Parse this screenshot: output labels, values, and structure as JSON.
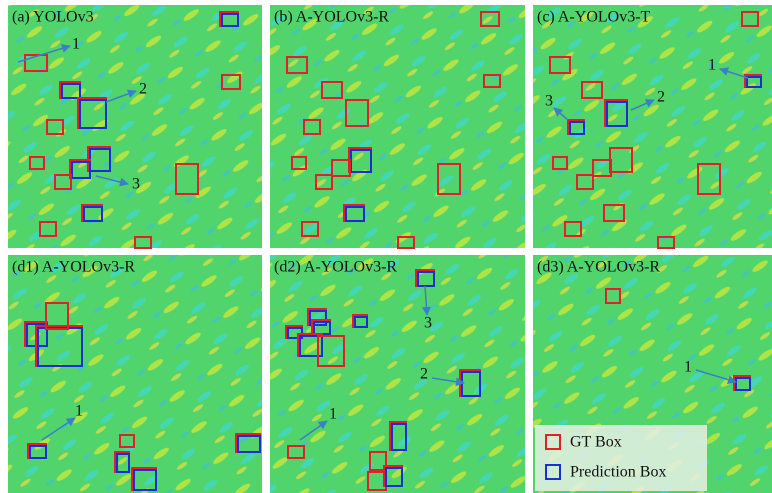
{
  "panels": [
    {
      "label": "(a)  YOLOv3",
      "annotations": [
        "1",
        "2",
        "3"
      ]
    },
    {
      "label": "(b)  A-YOLOv3-R",
      "annotations": []
    },
    {
      "label": "(c)  A-YOLOv3-T",
      "annotations": [
        "1",
        "3",
        "2"
      ]
    },
    {
      "label": "(d1)  A-YOLOv3-R",
      "annotations": [
        "1"
      ]
    },
    {
      "label": "(d2)  A-YOLOv3-R",
      "annotations": [
        "3",
        "2",
        "1"
      ]
    },
    {
      "label": "(d3)  A-YOLOv3-R",
      "annotations": [
        "1"
      ]
    }
  ],
  "legend": {
    "gt": "GT Box",
    "prediction": "Prediction Box"
  }
}
